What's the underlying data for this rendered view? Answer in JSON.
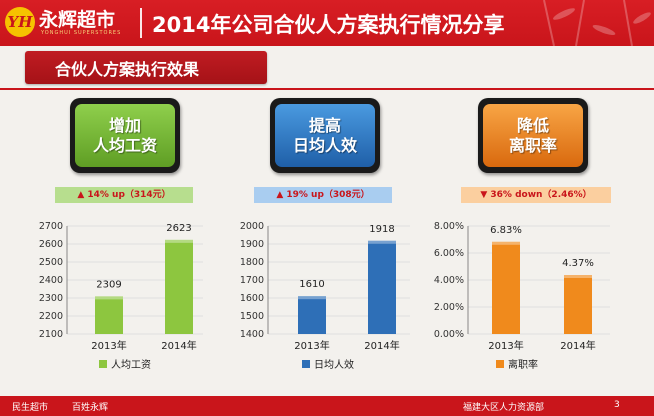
{
  "header": {
    "logo_mark": "YH",
    "logo_name": "永辉超市",
    "logo_sub": "YONGHUI SUPERSTORES",
    "title": "2014年公司合伙人方案执行情况分享"
  },
  "section": {
    "title": "合伙人方案执行效果"
  },
  "panels": [
    {
      "card_line1": "增加",
      "card_line2": "人均工资",
      "badge_arrow": "▲",
      "badge_text": "14% up（314元）",
      "color": "#8dc63f"
    },
    {
      "card_line1": "提高",
      "card_line2": "日均人效",
      "badge_arrow": "▲",
      "badge_text": "19% up（308元）",
      "color": "#2e6fb7"
    },
    {
      "card_line1": "降低",
      "card_line2": "离职率",
      "badge_arrow": "▼",
      "badge_text": "36% down（2.46%）",
      "color": "#f08a1c"
    }
  ],
  "chart_data": [
    {
      "type": "bar",
      "categories": [
        "2013年",
        "2014年"
      ],
      "series": [
        {
          "name": "人均工资",
          "values": [
            2309,
            2623
          ]
        }
      ],
      "value_labels": [
        "2309",
        "2623"
      ],
      "ylim": [
        2100,
        2700
      ],
      "yticks": [
        "2100",
        "2200",
        "2300",
        "2400",
        "2500",
        "2600",
        "2700"
      ],
      "color": "#8dc63f"
    },
    {
      "type": "bar",
      "categories": [
        "2013年",
        "2014年"
      ],
      "series": [
        {
          "name": "日均人效",
          "values": [
            1610,
            1918
          ]
        }
      ],
      "value_labels": [
        "1610",
        "1918"
      ],
      "ylim": [
        1400,
        2000
      ],
      "yticks": [
        "1400",
        "1500",
        "1600",
        "1700",
        "1800",
        "1900",
        "2000"
      ],
      "color": "#2e6fb7"
    },
    {
      "type": "bar",
      "categories": [
        "2013年",
        "2014年"
      ],
      "series": [
        {
          "name": "离职率",
          "values": [
            6.83,
            4.37
          ]
        }
      ],
      "value_labels": [
        "6.83%",
        "4.37%"
      ],
      "ylim": [
        0,
        8
      ],
      "yticks": [
        "0.00%",
        "2.00%",
        "4.00%",
        "6.00%",
        "8.00%"
      ],
      "color": "#f08a1c"
    }
  ],
  "footer": {
    "left1": "民生超市",
    "left2": "百姓永辉",
    "right": "福建大区人力资源部",
    "page": "3"
  }
}
